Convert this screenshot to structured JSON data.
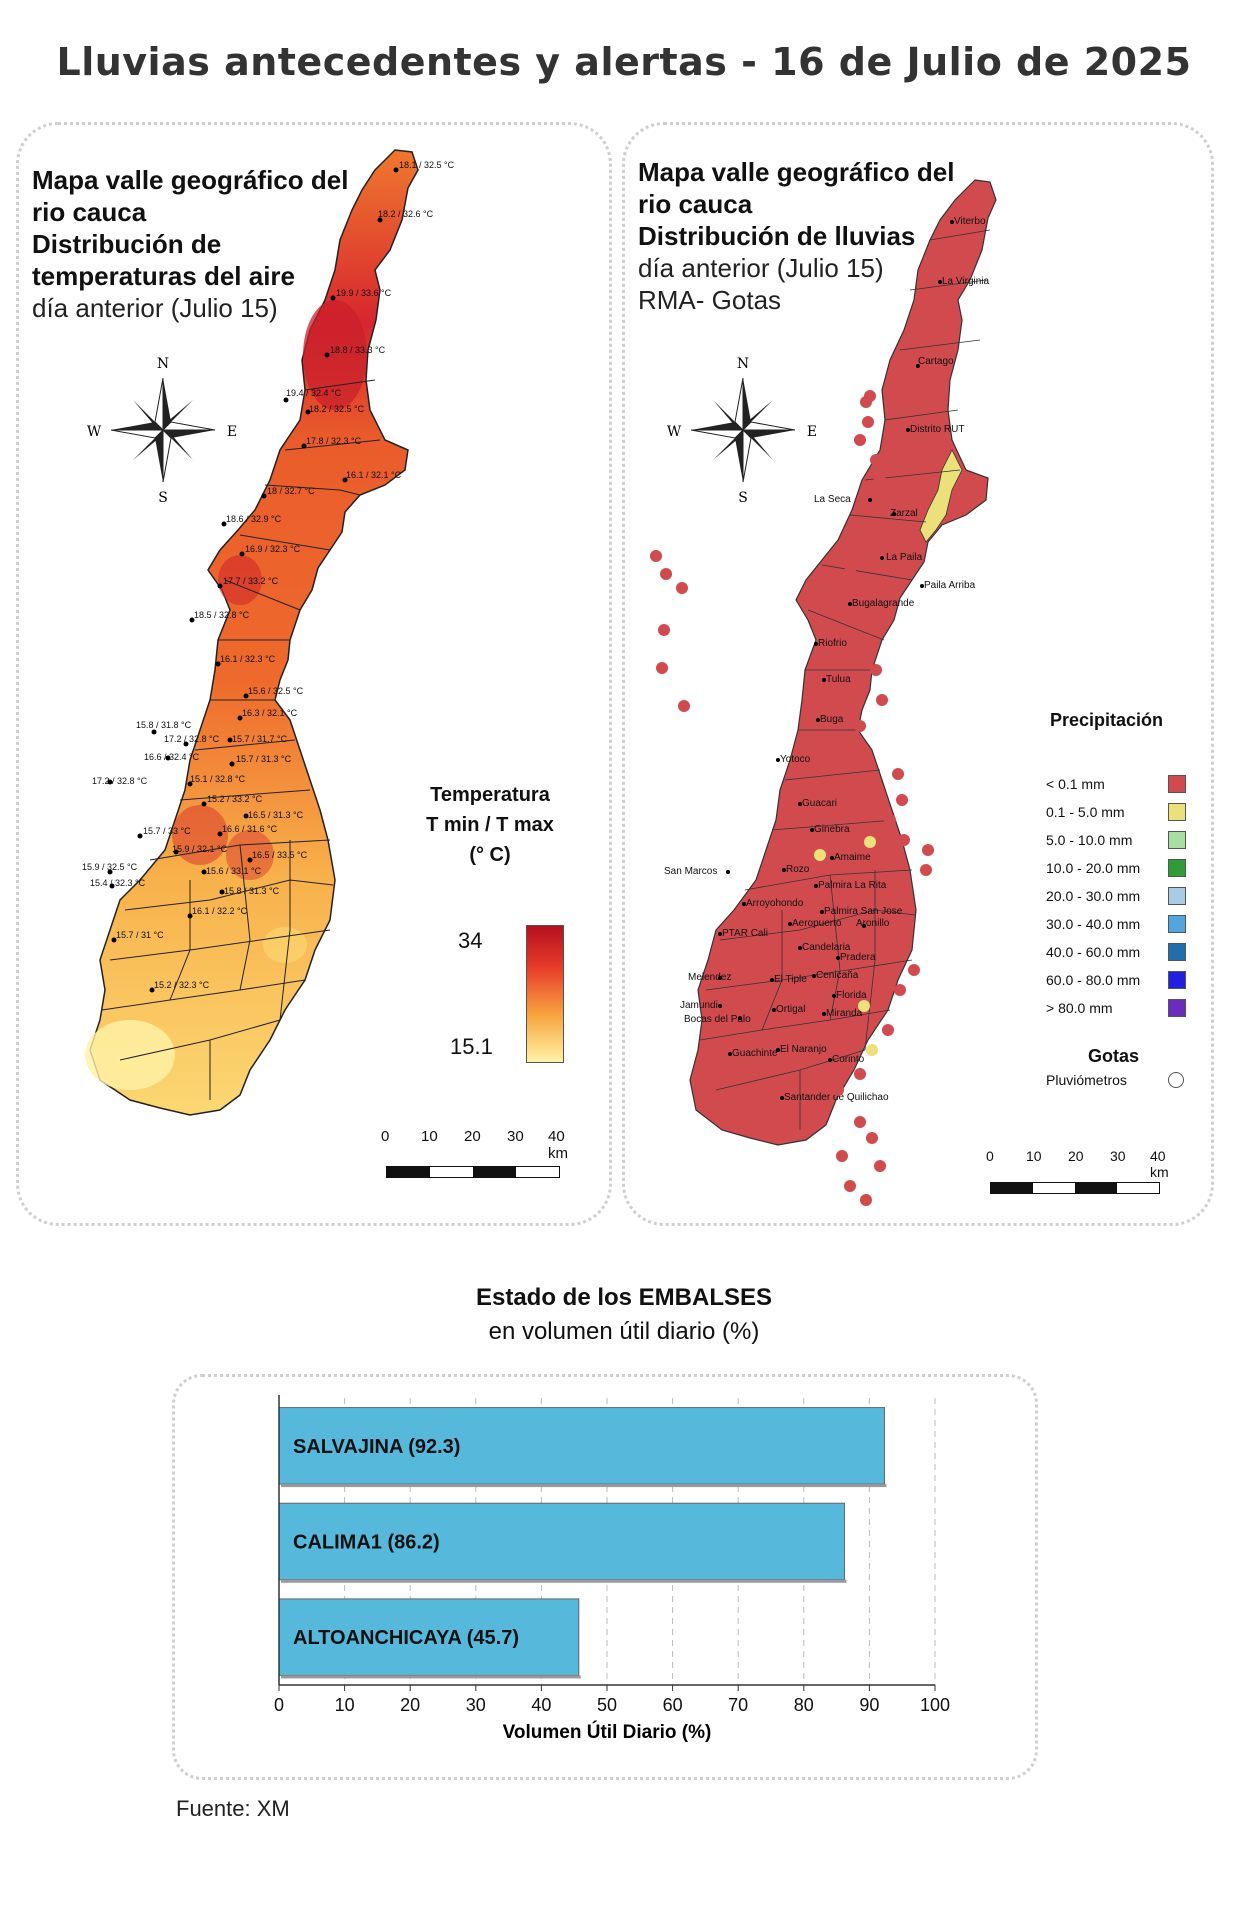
{
  "title": "Lluvias antecedentes y alertas - 16 de Julio de 2025",
  "temp_map": {
    "heading": [
      "Mapa valle geográfico del",
      "rio cauca",
      "Distribución de",
      "temperaturas del aire"
    ],
    "subheading": "día anterior (Julio 15)",
    "compass": {
      "n": "N",
      "s": "S",
      "e": "E",
      "w": "W"
    },
    "legend_title": [
      "Temperatura",
      "T min / T max",
      "(° C)"
    ],
    "legend_max": "34",
    "legend_min": "15.1",
    "scale_labels": [
      "0",
      "10",
      "20",
      "30",
      "40 km"
    ],
    "stations": [
      "18.1 / 32.5 °C",
      "18.2 / 32.6 °C",
      "19.9 / 33.6 °C",
      "18.8 / 33.3 °C",
      "19.4 / 32.4 °C",
      "18.2 / 32.5 °C",
      "17.8 / 32.3 °C",
      "16.1 / 32.1 °C",
      "18 / 32.7 °C",
      "18.6 / 32.9 °C",
      "16.9 / 32.3 °C",
      "17.7 / 33.2 °C",
      "18.5 / 32.8 °C",
      "16.1 / 32.3 °C",
      "15.6 / 32.5 °C",
      "16.3 / 32.1 °C",
      "15.8 / 31.8 °C",
      "17.2 / 32.8 °C",
      "15.7 / 31.7 °C",
      "16.6 / 32.4 °C",
      "15.7 / 31.3 °C",
      "17.2 / 32.8 °C",
      "15.1 / 32.8 °C",
      "15.2 / 33.2 °C",
      "16.5 / 31.3 °C",
      "15.7 / 33 °C",
      "16.6 / 31.6 °C",
      "15.9 / 32.1 °C",
      "16.5 / 33.5 °C",
      "15.9 / 32.5 °C",
      "15.6 / 33.1 °C",
      "15.4 / 32.3 °C",
      "15.8 / 31.3 °C",
      "16.1 / 32.2 °C",
      "15.7 / 31 °C",
      "15.2 / 32.3 °C"
    ]
  },
  "rain_map": {
    "heading": [
      "Mapa valle geográfico del",
      "rio cauca"
    ],
    "heading_bold": "Distribución de lluvias",
    "subheading": [
      "día anterior (Julio 15)",
      "RMA- Gotas"
    ],
    "compass": {
      "n": "N",
      "s": "S",
      "e": "E",
      "w": "W"
    },
    "legend_title": "Precipitación",
    "legend": [
      {
        "label": "< 0.1 mm",
        "color": "#d14b4e"
      },
      {
        "label": "0.1 - 5.0 mm",
        "color": "#ece07a"
      },
      {
        "label": "5.0 - 10.0 mm",
        "color": "#a8dfa0"
      },
      {
        "label": "10.0 - 20.0 mm",
        "color": "#2e9d35"
      },
      {
        "label": "20.0 - 30.0 mm",
        "color": "#a7cde4"
      },
      {
        "label": "30.0 - 40.0 mm",
        "color": "#4fa6e0"
      },
      {
        "label": "40.0 - 60.0 mm",
        "color": "#1f6fae"
      },
      {
        "label": "60.0 - 80.0 mm",
        "color": "#2020e0"
      },
      {
        "label": "> 80.0 mm",
        "color": "#6a2cc0"
      }
    ],
    "gotas_title": "Gotas",
    "gotas_label": "Pluviómetros",
    "scale_labels": [
      "0",
      "10",
      "20",
      "30",
      "40 km"
    ],
    "towns": [
      "Viterbo",
      "La Virginia",
      "Cartago",
      "Distrito RUT",
      "La Seca",
      "Zarzal",
      "La Paila",
      "Paila Arriba",
      "Bugalagrande",
      "Riofrio",
      "Tulua",
      "Buga",
      "Yotoco",
      "Guacari",
      "Ginebra",
      "Amaime",
      "San Marcos",
      "Rozo",
      "Palmira La Rita",
      "Arroyohondo",
      "Palmira San Jose",
      "Aeropuerto",
      "Aronillo",
      "PTAR Cali",
      "Candelaria",
      "Pradera",
      "Cenicaña",
      "Melendez",
      "El Tiple",
      "Florida",
      "Jamundi",
      "Bocas del Palo",
      "Ortigal",
      "Miranda",
      "El Naranjo",
      "Guachinte",
      "Corinto",
      "Santander de Quilichao"
    ]
  },
  "reservoirs": {
    "title": "Estado de los EMBALSES",
    "subtitle": "en volumen útil diario (%)",
    "source": "Fuente: XM"
  },
  "chart_data": {
    "type": "bar",
    "orientation": "horizontal",
    "categories": [
      "SALVAJINA (92.3)",
      "CALIMA1 (86.2)",
      "ALTOANCHICAYA (45.7)"
    ],
    "values": [
      92.3,
      86.2,
      45.7
    ],
    "xlabel": "Volumen Útil Diario (%)",
    "xlim": [
      0,
      100
    ],
    "xticks": [
      "0",
      "10",
      "20",
      "30",
      "40",
      "50",
      "60",
      "70",
      "80",
      "90",
      "100"
    ],
    "bar_color": "#56b9dc",
    "grid": "vertical dashed"
  }
}
